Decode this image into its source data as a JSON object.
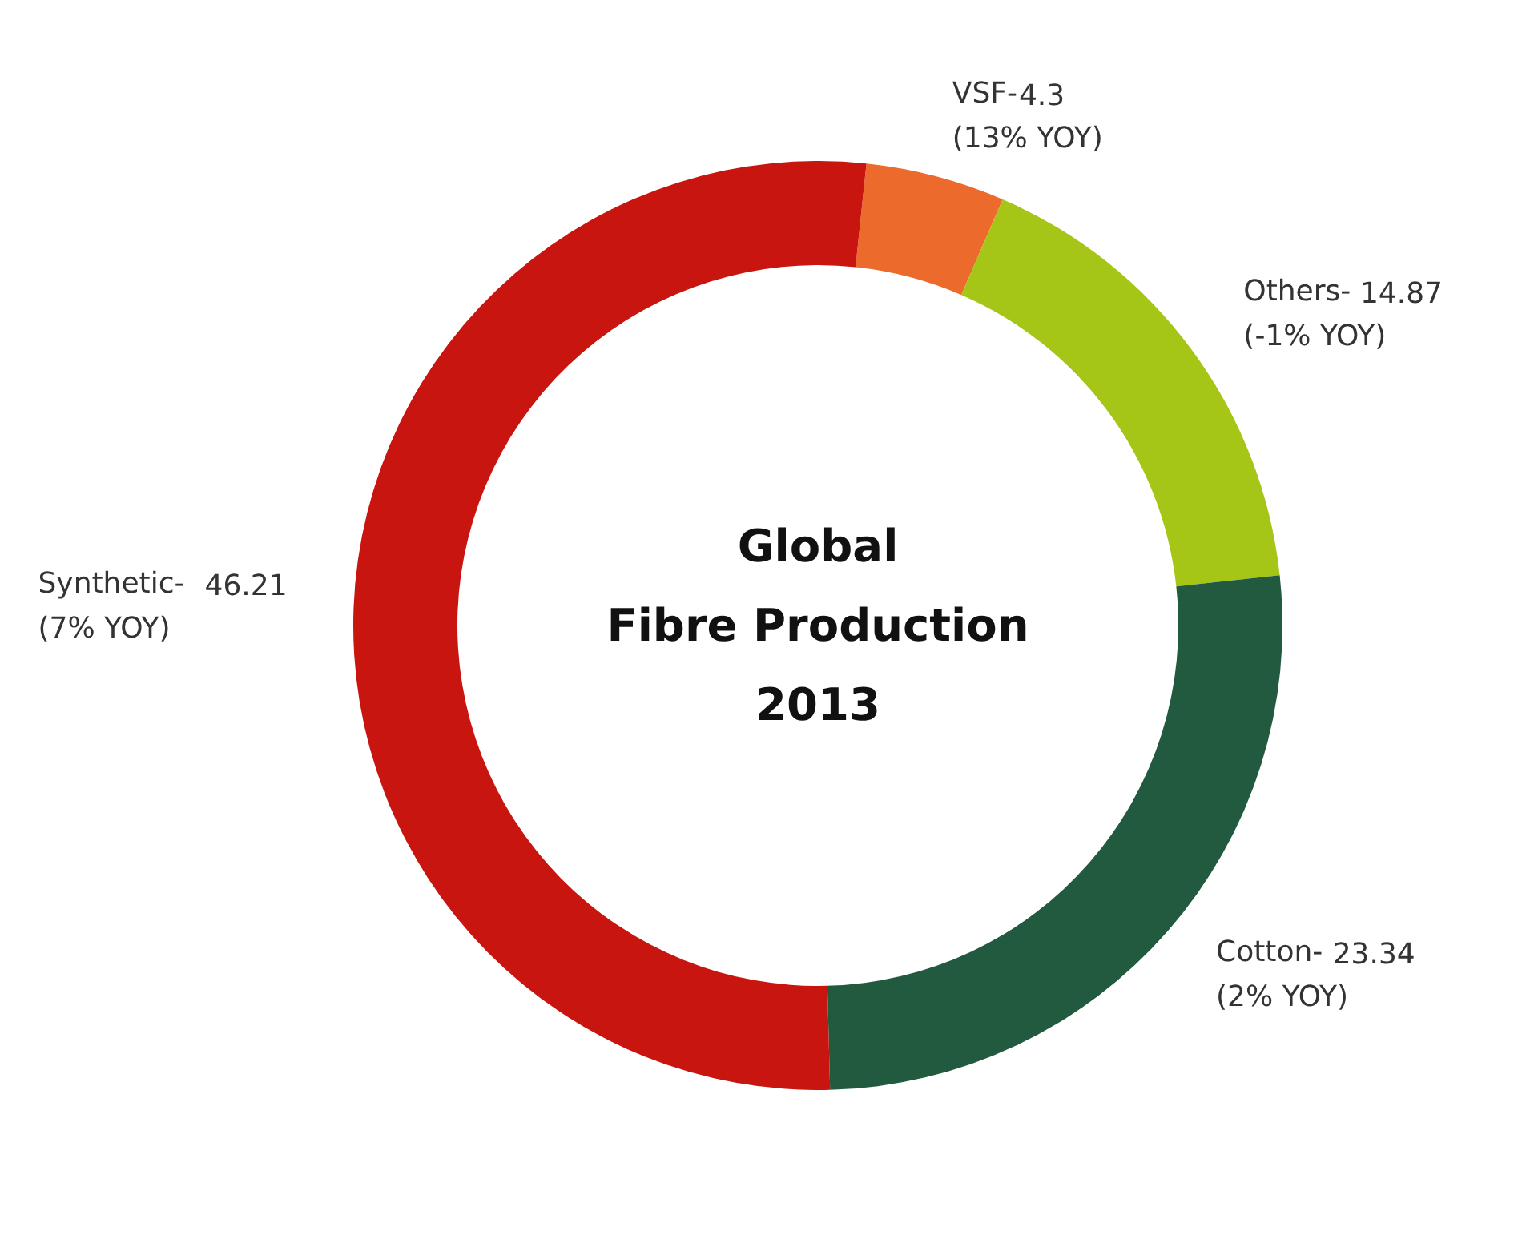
{
  "chart_data": {
    "type": "donut",
    "title": "Global\nFibre Production\n2013",
    "categories": [
      "VSF-",
      "Others-",
      "Cotton-",
      "Synthetic-"
    ],
    "values": [
      4.3,
      14.87,
      23.34,
      46.21
    ],
    "colors": [
      "#ec6a2c",
      "#a5c617",
      "#215a3f",
      "#c9150f"
    ],
    "data_labels": true,
    "annotations": [
      "(13% YOY)",
      "(-1% YOY)",
      "(2% YOY)",
      "(7% YOY)"
    ]
  }
}
